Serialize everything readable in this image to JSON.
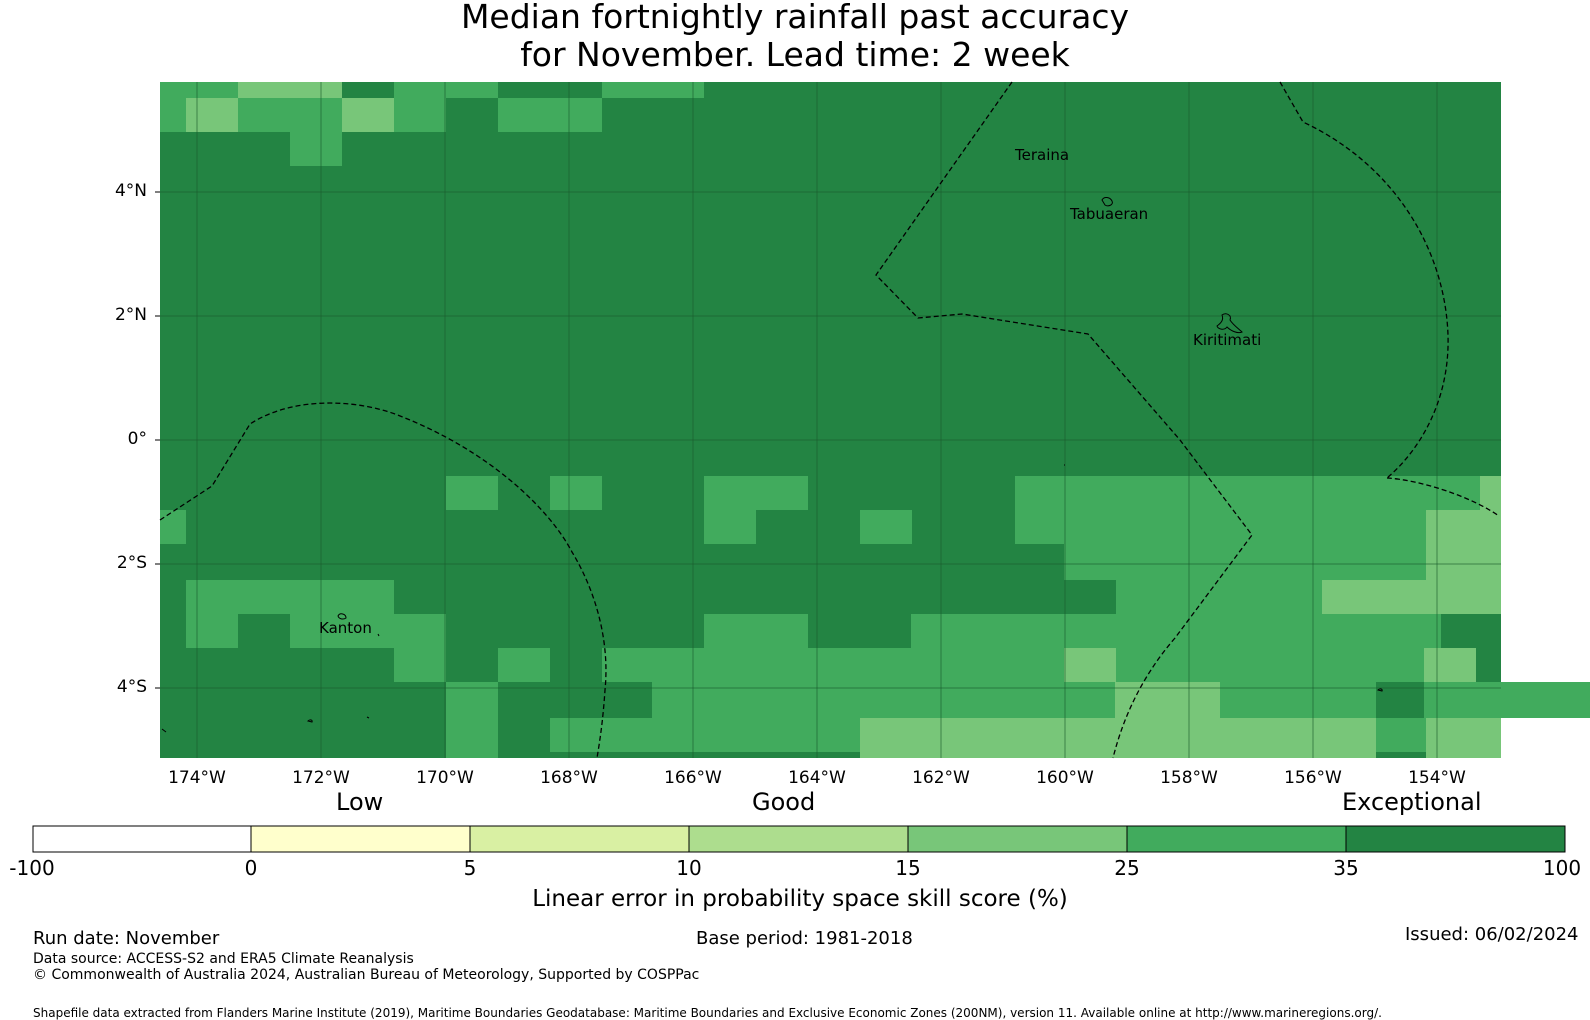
{
  "title": {
    "line1": "Median fortnightly rainfall past accuracy",
    "line2": "for November. Lead time: 2 week"
  },
  "colors": {
    "c35_100": "#238443",
    "c25_35": "#41ab5d",
    "c15_25": "#78c679",
    "c10_15": "#addd8e",
    "c5_10": "#d9f0a3",
    "c0_5": "#ffffcc",
    "cneg": "#ffffff",
    "boundary": "#000000",
    "grid": "#1a5c2e"
  },
  "map": {
    "lon_range": [
      -174.6,
      -153.0
    ],
    "lat_range": [
      -5.1,
      5.8
    ],
    "x_ticks": [
      "174°W",
      "172°W",
      "170°W",
      "168°W",
      "166°W",
      "164°W",
      "162°W",
      "160°W",
      "158°W",
      "156°W",
      "154°W"
    ],
    "y_ticks": [
      "4°N",
      "2°N",
      "0°",
      "2°S",
      "4°S"
    ],
    "places": {
      "teraina": "Teraina",
      "tabuaeran": "Tabuaeran",
      "kiritimati": "Kiritimati",
      "kanton": "Kanton"
    }
  },
  "legend": {
    "category_low": "Low",
    "category_good": "Good",
    "category_exceptional": "Exceptional",
    "ticks": [
      "-100",
      "0",
      "5",
      "10",
      "15",
      "25",
      "35",
      "100"
    ],
    "label": "Linear error in probability space skill score (%)"
  },
  "footer": {
    "run_date": "Run date: November",
    "base_period": "Base period: 1981-2018",
    "issued": "Issued: 06/02/2024",
    "data_source": "Data source: ACCESS-S2 and ERA5 Climate Reanalysis",
    "copyright": "© Commonwealth of Australia 2024, Australian Bureau of Meteorology, Supported by COSPPac",
    "shapefile": "Shapefile data extracted from Flanders Marine Institute (2019), Maritime Boundaries Geodatabase: Maritime Boundaries and Exclusive Economic Zones (200NM), version 11. Available online at http://www.marineregions.org/."
  }
}
